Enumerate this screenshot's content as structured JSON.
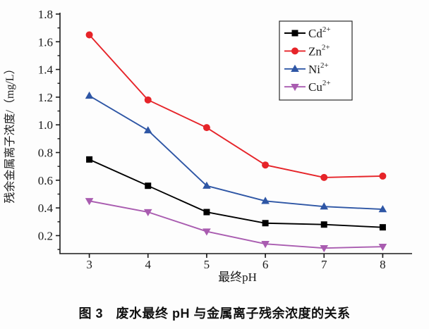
{
  "figure": {
    "caption": "图 3　废水最终 pH 与金属离子残余浓度的关系"
  },
  "chart_data": {
    "type": "line",
    "title": "",
    "xlabel": "最终pH",
    "ylabel": "残余金属离子浓度/（mg/L）",
    "x": [
      3,
      4,
      5,
      6,
      7,
      8
    ],
    "xticks": [
      "3",
      "4",
      "5",
      "6",
      "7",
      "8"
    ],
    "yticks": [
      "0.2",
      "0.4",
      "0.6",
      "0.8",
      "1.0",
      "1.2",
      "1.4",
      "1.6",
      "1.8"
    ],
    "xlim": [
      2.5,
      8.5
    ],
    "ylim": [
      0.07,
      1.81
    ],
    "x_minor_step": 0.5,
    "y_minor_step": 0.1,
    "grid": false,
    "legend_position": "top-right",
    "axis_color": "#1b1b1b",
    "series": [
      {
        "name": "Cd2+",
        "label": "Cd",
        "label_sup": "2+",
        "marker": "square",
        "color": "#000000",
        "values": [
          0.75,
          0.56,
          0.37,
          0.29,
          0.28,
          0.26
        ]
      },
      {
        "name": "Zn2+",
        "label": "Zn",
        "label_sup": "2+",
        "marker": "circle",
        "color": "#e62429",
        "values": [
          1.65,
          1.18,
          0.98,
          0.71,
          0.62,
          0.63
        ]
      },
      {
        "name": "Ni2+",
        "label": "Ni",
        "label_sup": "2+",
        "marker": "triangle-up",
        "color": "#2e56a5",
        "values": [
          1.21,
          0.96,
          0.56,
          0.45,
          0.41,
          0.39
        ]
      },
      {
        "name": "Cu2+",
        "label": "Cu",
        "label_sup": "2+",
        "marker": "triangle-down",
        "color": "#a95cb0",
        "values": [
          0.45,
          0.37,
          0.23,
          0.14,
          0.11,
          0.12
        ]
      }
    ]
  }
}
